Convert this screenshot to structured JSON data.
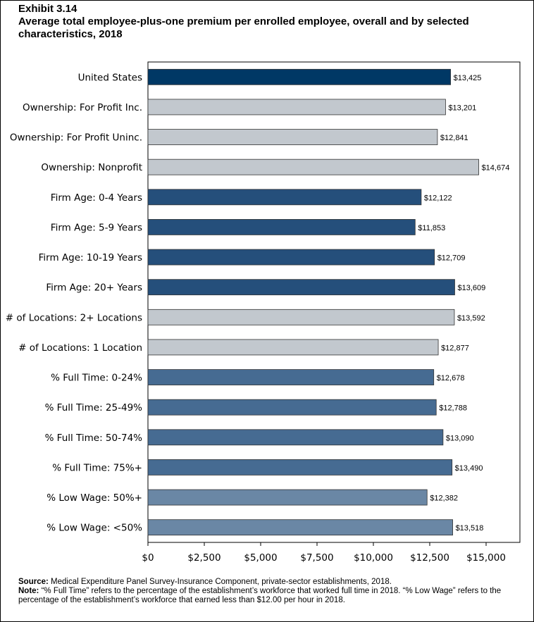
{
  "header": {
    "exhibit": "Exhibit 3.14",
    "title": "Average total employee-plus-one premium per enrolled employee, overall and by selected characteristics, 2018"
  },
  "footer": {
    "source_label": "Source:",
    "source_text": "Medical Expenditure Panel Survey-Insurance Component, private-sector establishments, 2018.",
    "note_label": "Note:",
    "note_text": "“% Full Time” refers to the percentage of the establishment’s workforce that worked full time in 2018. “% Low Wage” refers to the percentage of the establishment’s workforce that earned less than $12.00 per hour in 2018."
  },
  "chart_data": {
    "type": "bar",
    "orientation": "horizontal",
    "categories": [
      "United States",
      "Ownership: For Profit Inc.",
      "Ownership: For Profit Uninc.",
      "Ownership: Nonprofit",
      "Firm Age: 0-4 Years",
      "Firm Age: 5-9 Years",
      "Firm Age: 10-19 Years",
      "Firm Age: 20+ Years",
      "# of Locations: 2+ Locations",
      "# of Locations: 1 Location",
      "% Full Time: 0-24%",
      "% Full Time: 25-49%",
      "% Full Time: 50-74%",
      "% Full Time: 75%+",
      "% Low Wage: 50%+",
      "% Low Wage: <50%"
    ],
    "values": [
      13425,
      13201,
      12841,
      14674,
      12122,
      11853,
      12709,
      13609,
      13592,
      12877,
      12678,
      12788,
      13090,
      13490,
      12382,
      13518
    ],
    "data_labels": [
      "$13,425",
      "$13,201",
      "$12,841",
      "$14,674",
      "$12,122",
      "$11,853",
      "$12,709",
      "$13,609",
      "$13,592",
      "$12,877",
      "$12,678",
      "$12,788",
      "$13,090",
      "$13,490",
      "$12,382",
      "$13,518"
    ],
    "bar_colors": [
      "#003865",
      "#c2c8ce",
      "#c2c8ce",
      "#c2c8ce",
      "#254f7b",
      "#254f7b",
      "#254f7b",
      "#254f7b",
      "#c2c8ce",
      "#c2c8ce",
      "#466b92",
      "#466b92",
      "#466b92",
      "#466b92",
      "#6a87a5",
      "#6a87a5"
    ],
    "xlim": [
      0,
      16500
    ],
    "xticks": [
      0,
      2500,
      5000,
      7500,
      10000,
      12500,
      15000
    ],
    "xtick_labels": [
      "$0",
      "$2,500",
      "$5,000",
      "$7,500",
      "$10,000",
      "$12,500",
      "$15,000"
    ],
    "grid": false,
    "legend": "none"
  }
}
